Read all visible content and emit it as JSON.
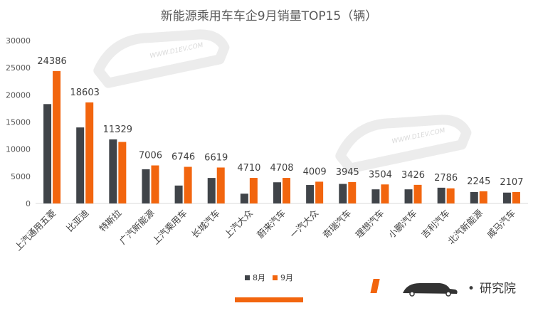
{
  "chart_data": {
    "type": "bar",
    "title": "新能源乘用车车企9月销量TOP15（辆）",
    "categories": [
      "上汽通用五菱",
      "比亚迪",
      "特斯拉",
      "广汽新能源",
      "上汽乘用车",
      "长城汽车",
      "上汽大众",
      "蔚来汽车",
      "一汽大众",
      "奇瑞汽车",
      "理想汽车",
      "小鹏汽车",
      "吉利汽车",
      "北汽新能源",
      "威马汽车"
    ],
    "series": [
      {
        "name": "8月",
        "color": "#404449",
        "values": [
          18300,
          14000,
          11800,
          6300,
          3300,
          4700,
          1800,
          3900,
          3400,
          3600,
          2600,
          2600,
          2900,
          2100,
          2000
        ]
      },
      {
        "name": "9月",
        "color": "#f2650e",
        "values": [
          24386,
          18603,
          11329,
          7006,
          6746,
          6619,
          4710,
          4708,
          4009,
          3945,
          3504,
          3426,
          2786,
          2245,
          2107
        ]
      }
    ],
    "data_labels": [
      "24386",
      "18603",
      "11329",
      "7006",
      "6746",
      "6619",
      "4710",
      "4708",
      "4009",
      "3945",
      "3504",
      "3426",
      "2786",
      "2245",
      "2107"
    ],
    "yticks": [
      "0",
      "5000",
      "10000",
      "15000",
      "20000",
      "25000",
      "30000"
    ],
    "ylim": [
      0,
      30000
    ],
    "xlabel": "",
    "ylabel": "",
    "legend": "bottom",
    "grid": false
  },
  "watermark": {
    "text": "WWW.D1EV.COM",
    "brand": "研究院",
    "brand_sep": "•"
  },
  "colors": {
    "accent": "#f2650e",
    "dark": "#404449",
    "axis_text": "#595959"
  }
}
